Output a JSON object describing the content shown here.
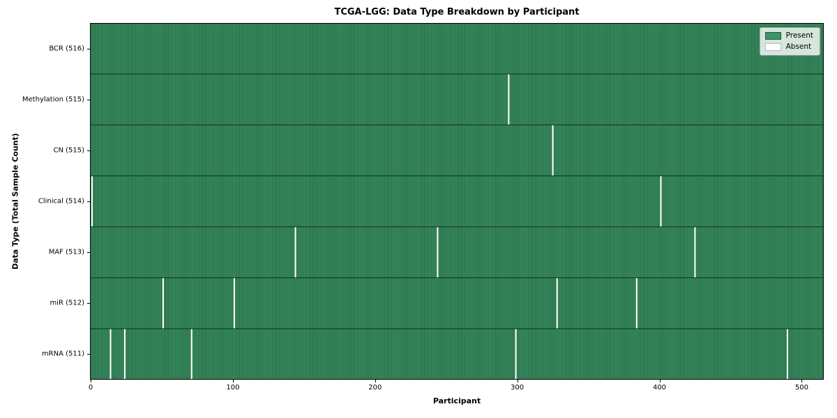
{
  "chart_data": {
    "type": "heatmap",
    "title": "TCGA-LGG: Data Type Breakdown by Participant",
    "xlabel": "Participant",
    "ylabel": "Data Type (Total Sample Count)",
    "n_participants": 516,
    "xlim": [
      -0.5,
      515.5
    ],
    "xticks": [
      0,
      100,
      200,
      300,
      400,
      500
    ],
    "rows": [
      {
        "label": "BCR (516)",
        "total": 516,
        "absent_participants": []
      },
      {
        "label": "Methylation (515)",
        "total": 515,
        "absent_participants": [
          294
        ]
      },
      {
        "label": "CN (515)",
        "total": 515,
        "absent_participants": [
          325
        ]
      },
      {
        "label": "Clinical (514)",
        "total": 514,
        "absent_participants": [
          1,
          401
        ]
      },
      {
        "label": "MAF (513)",
        "total": 513,
        "absent_participants": [
          144,
          244,
          425
        ]
      },
      {
        "label": "miR (512)",
        "total": 512,
        "absent_participants": [
          51,
          101,
          328,
          384
        ]
      },
      {
        "label": "mRNA (511)",
        "total": 511,
        "absent_participants": [
          14,
          24,
          71,
          299,
          490
        ]
      }
    ],
    "legend": [
      {
        "label": "Present",
        "color": "#3D9467",
        "edge": "#1E5C38"
      },
      {
        "label": "Absent",
        "color": "#FFFFFF",
        "edge": "#BDBDBD"
      }
    ],
    "legend_position": "upper right",
    "grid": false,
    "colors": {
      "present_fill": "#3D9467",
      "bar_edge": "#1E5C38",
      "absent": "#FFFFFF",
      "row_separator": "#12301F",
      "spine": "#000000",
      "background": "#FFFFFF"
    }
  }
}
